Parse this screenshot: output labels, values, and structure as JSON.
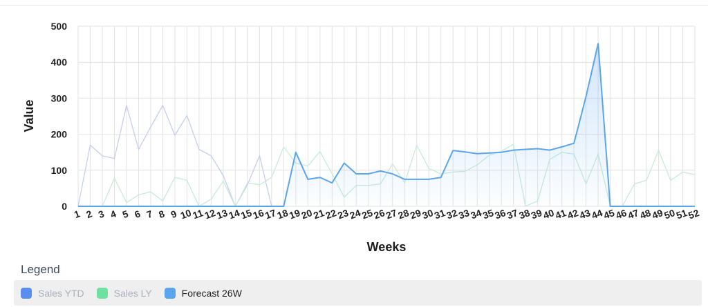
{
  "legend": {
    "title": "Legend",
    "items": [
      {
        "label": "Sales YTD",
        "color": "#5b8def",
        "active": false
      },
      {
        "label": "Sales LY",
        "color": "#6ee0a0",
        "active": false
      },
      {
        "label": "Forecast 26W",
        "color": "#5aa5ee",
        "active": true
      }
    ]
  },
  "chart_data": {
    "type": "line",
    "xlabel": "Weeks",
    "ylabel": "Value",
    "ylim": [
      0,
      500
    ],
    "yticks": [
      0,
      100,
      200,
      300,
      400,
      500
    ],
    "categories": [
      "1",
      "2",
      "3",
      "4",
      "5",
      "6",
      "7",
      "8",
      "9",
      "10",
      "11",
      "12",
      "13",
      "14",
      "15",
      "16",
      "17",
      "18",
      "19",
      "20",
      "21",
      "22",
      "23",
      "24",
      "25",
      "26",
      "27",
      "28",
      "29",
      "30",
      "31",
      "32",
      "33",
      "34",
      "35",
      "36",
      "37",
      "38",
      "39",
      "40",
      "41",
      "42",
      "43",
      "44",
      "45",
      "46",
      "47",
      "48",
      "49",
      "50",
      "51",
      "52"
    ],
    "grid": true,
    "series": [
      {
        "name": "Sales YTD",
        "color": "#c5cdee",
        "faded": true,
        "values": [
          0,
          170,
          140,
          133,
          280,
          158,
          220,
          280,
          197,
          252,
          158,
          140,
          85,
          0,
          60,
          140,
          0,
          0,
          150,
          75,
          80,
          65,
          120,
          90,
          90,
          98,
          90,
          75,
          75,
          75,
          80,
          155,
          151,
          146,
          148,
          150,
          156,
          158,
          160,
          156,
          165,
          175,
          305,
          452,
          0,
          0,
          0,
          0,
          0,
          0,
          0,
          0
        ]
      },
      {
        "name": "Sales LY",
        "color": "#c4ecd7",
        "faded": true,
        "values": [
          0,
          0,
          0,
          78,
          10,
          32,
          40,
          15,
          80,
          72,
          0,
          20,
          70,
          0,
          65,
          60,
          80,
          165,
          120,
          112,
          152,
          90,
          25,
          58,
          58,
          62,
          118,
          65,
          170,
          105,
          90,
          95,
          97,
          115,
          142,
          153,
          172,
          0,
          15,
          130,
          150,
          145,
          62,
          145,
          0,
          0,
          62,
          72,
          155,
          72,
          95,
          88
        ]
      },
      {
        "name": "Forecast 26W",
        "color": "#5aa5ee",
        "faded": false,
        "values": [
          0,
          0,
          0,
          0,
          0,
          0,
          0,
          0,
          0,
          0,
          0,
          0,
          0,
          0,
          0,
          0,
          0,
          0,
          150,
          75,
          80,
          65,
          120,
          90,
          90,
          98,
          90,
          75,
          75,
          75,
          80,
          155,
          151,
          146,
          148,
          150,
          156,
          158,
          160,
          156,
          165,
          175,
          305,
          452,
          0,
          0,
          0,
          0,
          0,
          0,
          0,
          0
        ]
      }
    ]
  }
}
